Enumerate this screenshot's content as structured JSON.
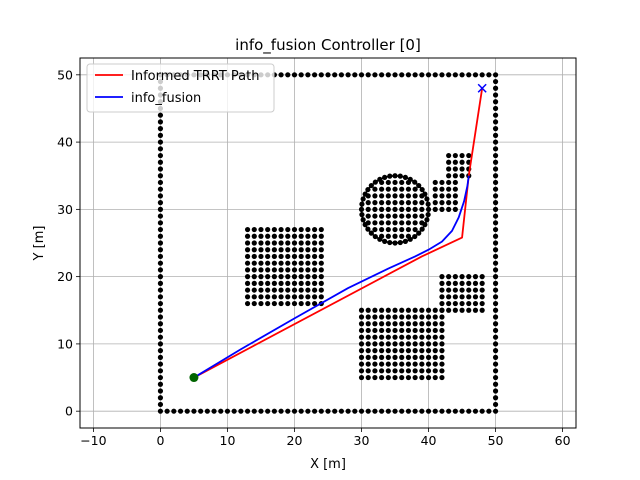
{
  "chart_data": {
    "type": "scatter",
    "title": "info_fusion Controller [0]",
    "xlabel": "X [m]",
    "ylabel": "Y [m]",
    "xlim": [
      -12,
      62
    ],
    "ylim": [
      -2.5,
      52.5
    ],
    "xticks": [
      "−10",
      "0",
      "10",
      "20",
      "30",
      "40",
      "50",
      "60"
    ],
    "xtick_values": [
      -10,
      0,
      10,
      20,
      30,
      40,
      50,
      60
    ],
    "yticks": [
      "0",
      "10",
      "20",
      "30",
      "40",
      "50"
    ],
    "ytick_values": [
      0,
      10,
      20,
      30,
      40,
      50
    ],
    "grid": true,
    "legend": {
      "placement": "upper-left",
      "entries": [
        {
          "label": "Informed TRRT Path",
          "color": "#ff0000"
        },
        {
          "label": "info_fusion",
          "color": "#0000ff"
        }
      ]
    },
    "series": [
      {
        "name": "Informed TRRT Path",
        "color": "#ff0000",
        "x": [
          5,
          39,
          45,
          46,
          48
        ],
        "y": [
          5,
          23,
          25.8,
          35,
          48
        ]
      },
      {
        "name": "info_fusion",
        "color": "#0000ff",
        "x": [
          5,
          12,
          20,
          28,
          34,
          38,
          40,
          42,
          43.5,
          44.5,
          45.3,
          45.8,
          46
        ],
        "y": [
          5,
          9.2,
          13.8,
          18.3,
          21.2,
          23,
          24,
          25.2,
          26.8,
          28.8,
          31.2,
          33.5,
          35
        ]
      }
    ],
    "obstacles": {
      "color": "#000000",
      "boundary": {
        "x": [
          0,
          50
        ],
        "y": [
          0,
          50
        ],
        "step": 1
      },
      "rects": [
        {
          "x": [
            13,
            24
          ],
          "y": [
            16,
            27
          ],
          "step": 1
        },
        {
          "x": [
            30,
            42
          ],
          "y": [
            5,
            15
          ],
          "step": 1
        },
        {
          "x": [
            41,
            44
          ],
          "y": [
            30,
            34
          ],
          "step": 1
        },
        {
          "x": [
            43,
            46
          ],
          "y": [
            35,
            38
          ],
          "step": 1
        },
        {
          "x": [
            42,
            48
          ],
          "y": [
            15,
            20
          ],
          "step": 1
        }
      ],
      "circle": {
        "cx": 35,
        "cy": 30,
        "r": 5
      }
    },
    "start": {
      "x": 5,
      "y": 5,
      "color": "#006400"
    },
    "goal": {
      "x": 48,
      "y": 48,
      "color": "#0000ff"
    }
  }
}
